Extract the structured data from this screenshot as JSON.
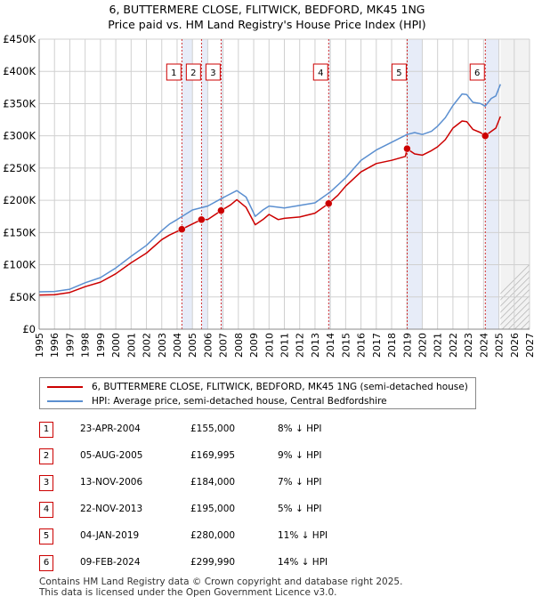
{
  "title_line1": "6, BUTTERMERE CLOSE, FLITWICK, BEDFORD, MK45 1NG",
  "title_line2": "Price paid vs. HM Land Registry's House Price Index (HPI)",
  "chart_data": {
    "type": "line",
    "title": "6, BUTTERMERE CLOSE, FLITWICK, BEDFORD, MK45 1NG — Price paid vs. HM Land Registry's House Price Index (HPI)",
    "xlabel": "",
    "ylabel": "",
    "xlim": [
      1995,
      2027
    ],
    "ylim": [
      0,
      450000
    ],
    "y_ticks": [
      {
        "value": 0,
        "label": "£0"
      },
      {
        "value": 50000,
        "label": "£50K"
      },
      {
        "value": 100000,
        "label": "£100K"
      },
      {
        "value": 150000,
        "label": "£150K"
      },
      {
        "value": 200000,
        "label": "£200K"
      },
      {
        "value": 250000,
        "label": "£250K"
      },
      {
        "value": 300000,
        "label": "£300K"
      },
      {
        "value": 350000,
        "label": "£350K"
      },
      {
        "value": 400000,
        "label": "£400K"
      },
      {
        "value": 450000,
        "label": "£450K"
      }
    ],
    "x_ticks": [
      "1995",
      "1996",
      "1997",
      "1998",
      "1999",
      "2000",
      "2001",
      "2002",
      "2003",
      "2004",
      "2005",
      "2006",
      "2007",
      "2008",
      "2009",
      "2010",
      "2011",
      "2012",
      "2013",
      "2014",
      "2015",
      "2016",
      "2017",
      "2018",
      "2019",
      "2020",
      "2021",
      "2022",
      "2023",
      "2024",
      "2025",
      "2026",
      "2027"
    ],
    "grid": true,
    "forecast_start": 2025.1,
    "series": [
      {
        "name": "6, BUTTERMERE CLOSE, FLITWICK, BEDFORD, MK45 1NG (semi-detached house)",
        "color": "#cc0000",
        "x": [
          1995,
          1996,
          1997,
          1998,
          1999,
          2000,
          2001,
          2002,
          2003,
          2003.5,
          2004.31,
          2004.8,
          2005.59,
          2006,
          2006.87,
          2007.5,
          2007.9,
          2008.5,
          2009.1,
          2009.6,
          2010,
          2010.6,
          2011,
          2012,
          2013,
          2013.89,
          2014.5,
          2015,
          2016,
          2017,
          2018,
          2018.9,
          2019.01,
          2019.5,
          2020,
          2020.6,
          2021,
          2021.5,
          2022,
          2022.6,
          2022.9,
          2023.3,
          2023.8,
          2024.11,
          2024.5,
          2024.8,
          2025.1
        ],
        "y": [
          53000,
          53500,
          57000,
          66000,
          73000,
          86000,
          103000,
          118000,
          139000,
          146000,
          155000,
          161000,
          169995,
          170000,
          184000,
          193000,
          201000,
          189000,
          162000,
          170000,
          178000,
          170000,
          172000,
          174000,
          180000,
          195000,
          208000,
          222000,
          244000,
          257000,
          262000,
          268000,
          280000,
          272000,
          270000,
          277000,
          283000,
          294000,
          312000,
          323000,
          322000,
          310000,
          305000,
          299990,
          307000,
          312000,
          330000
        ]
      },
      {
        "name": "HPI: Average price, semi-detached house, Central Bedfordshire",
        "color": "#5b8fd0",
        "x": [
          1995,
          1996,
          1997,
          1998,
          1999,
          2000,
          2001,
          2002,
          2003,
          2003.5,
          2004,
          2005,
          2006,
          2007,
          2007.9,
          2008.5,
          2009.1,
          2009.6,
          2010,
          2011,
          2012,
          2013,
          2014,
          2015,
          2016,
          2017,
          2018,
          2019,
          2019.5,
          2020,
          2020.6,
          2021,
          2021.5,
          2022,
          2022.6,
          2022.9,
          2023.3,
          2023.8,
          2024.1,
          2024.5,
          2024.8,
          2025.1
        ],
        "y": [
          58000,
          58500,
          62000,
          72000,
          80000,
          95000,
          113000,
          130000,
          153000,
          163000,
          170000,
          185000,
          191000,
          204000,
          215000,
          205000,
          175000,
          185000,
          191000,
          188000,
          192000,
          196000,
          213000,
          235000,
          262000,
          278000,
          290000,
          302000,
          305000,
          302000,
          307000,
          315000,
          328000,
          347000,
          365000,
          364000,
          352000,
          350000,
          346000,
          358000,
          362000,
          380000
        ]
      }
    ],
    "sales": [
      {
        "label": "1",
        "x": 2004.31,
        "price": 155000
      },
      {
        "label": "2",
        "x": 2005.59,
        "price": 169995
      },
      {
        "label": "3",
        "x": 2006.87,
        "price": 184000
      },
      {
        "label": "4",
        "x": 2013.89,
        "price": 195000
      },
      {
        "label": "5",
        "x": 2019.01,
        "price": 280000
      },
      {
        "label": "6",
        "x": 2024.11,
        "price": 299990
      }
    ]
  },
  "legend": {
    "price_paid_label": "6, BUTTERMERE CLOSE, FLITWICK, BEDFORD, MK45 1NG (semi-detached house)",
    "hpi_label": "HPI: Average price, semi-detached house, Central Bedfordshire"
  },
  "colors": {
    "price_line": "#cc0000",
    "hpi_line": "#5b8fd0",
    "shade": "#dde4f5",
    "badge_border": "#cc0000"
  },
  "transactions": [
    {
      "num": "1",
      "date": "23-APR-2004",
      "price": "£155,000",
      "diff": "8% ↓ HPI"
    },
    {
      "num": "2",
      "date": "05-AUG-2005",
      "price": "£169,995",
      "diff": "9% ↓ HPI"
    },
    {
      "num": "3",
      "date": "13-NOV-2006",
      "price": "£184,000",
      "diff": "7% ↓ HPI"
    },
    {
      "num": "4",
      "date": "22-NOV-2013",
      "price": "£195,000",
      "diff": "5% ↓ HPI"
    },
    {
      "num": "5",
      "date": "04-JAN-2019",
      "price": "£280,000",
      "diff": "11% ↓ HPI"
    },
    {
      "num": "6",
      "date": "09-FEB-2024",
      "price": "£299,990",
      "diff": "14% ↓ HPI"
    }
  ],
  "footer": {
    "line1": "Contains HM Land Registry data © Crown copyright and database right 2025.",
    "line2": "This data is licensed under the Open Government Licence v3.0."
  }
}
